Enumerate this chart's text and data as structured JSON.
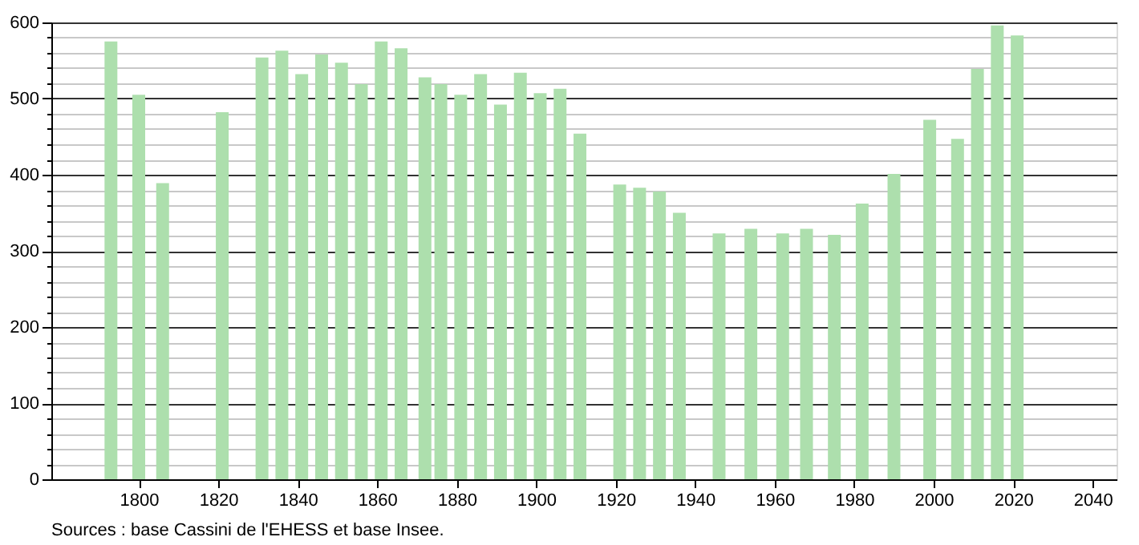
{
  "chart_data": {
    "type": "bar",
    "x": [
      1793,
      1800,
      1806,
      1821,
      1831,
      1836,
      1841,
      1846,
      1851,
      1856,
      1861,
      1866,
      1872,
      1876,
      1881,
      1886,
      1891,
      1896,
      1901,
      1906,
      1911,
      1921,
      1926,
      1931,
      1936,
      1946,
      1954,
      1962,
      1968,
      1975,
      1982,
      1990,
      1999,
      2006,
      2011,
      2016,
      2021
    ],
    "values": [
      575,
      505,
      389,
      482,
      554,
      563,
      532,
      558,
      547,
      519,
      575,
      566,
      528,
      519,
      505,
      532,
      492,
      534,
      507,
      513,
      454,
      387,
      383,
      378,
      350,
      323,
      329,
      323,
      329,
      321,
      362,
      401,
      472,
      447,
      539,
      596,
      583
    ],
    "color": "#addfad",
    "xlim": [
      1778,
      2046
    ],
    "xticks": [
      1800,
      1820,
      1840,
      1860,
      1880,
      1900,
      1920,
      1940,
      1960,
      1980,
      2000,
      2020,
      2040
    ],
    "ylim": [
      0,
      600
    ],
    "yticks": [
      0,
      {
        "value": 20,
        "label": null
      },
      {
        "value": 40,
        "label": null
      },
      {
        "value": 60,
        "label": null
      },
      {
        "value": 80,
        "label": null
      },
      100,
      {
        "value": 120,
        "label": null
      },
      {
        "value": 140,
        "label": null
      },
      {
        "value": 160,
        "label": null
      },
      {
        "value": 180,
        "label": null
      },
      200,
      {
        "value": 220,
        "label": null
      },
      {
        "value": 240,
        "label": null
      },
      {
        "value": 260,
        "label": null
      },
      {
        "value": 280,
        "label": null
      },
      300,
      {
        "value": 320,
        "label": null
      },
      {
        "value": 340,
        "label": null
      },
      {
        "value": 360,
        "label": null
      },
      {
        "value": 380,
        "label": null
      },
      400,
      {
        "value": 420,
        "label": null
      },
      {
        "value": 440,
        "label": null
      },
      {
        "value": 460,
        "label": null
      },
      {
        "value": 480,
        "label": null
      },
      500,
      {
        "value": 520,
        "label": null
      },
      {
        "value": 540,
        "label": null
      },
      {
        "value": 560,
        "label": null
      },
      {
        "value": 580,
        "label": null
      },
      600
    ],
    "grid": "y",
    "annotations": [
      "Sources : base Cassini de l'EHESS et base Insee."
    ]
  }
}
